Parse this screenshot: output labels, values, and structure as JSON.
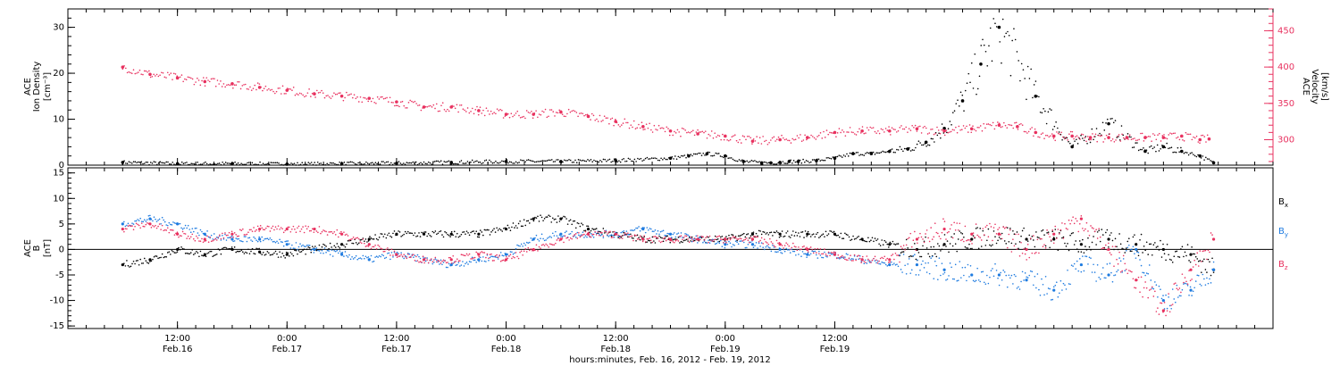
{
  "chart_data": [
    {
      "type": "scatter",
      "panel": "top",
      "ylabel_left": [
        "ACE",
        "Ion Density",
        "[cm⁻³]"
      ],
      "ylabel_right": [
        "ACE",
        "Velocity",
        "[km/s]"
      ],
      "left_axis": {
        "ylim": [
          0,
          34
        ],
        "ticks": [
          "0",
          "10",
          "20",
          "30"
        ],
        "tick_values": [
          0,
          10,
          20,
          30
        ]
      },
      "right_axis": {
        "ylim": [
          265,
          480
        ],
        "ticks": [
          "300",
          "350",
          "400",
          "450"
        ],
        "tick_values": [
          300,
          350,
          400,
          450
        ],
        "color": "#e8315f"
      },
      "series": [
        {
          "key": "density",
          "axis": "left",
          "color": "#000000",
          "x_hours": [
            0,
            6,
            12,
            18,
            24,
            30,
            36,
            42,
            48,
            54,
            60,
            62,
            64,
            66,
            68,
            70,
            71,
            72,
            73,
            74,
            76,
            78,
            80,
            82,
            84,
            86,
            88,
            90,
            92,
            94,
            96,
            100,
            104,
            108,
            112,
            114,
            116,
            118,
            119.5
          ],
          "values": [
            0.6,
            0.3,
            0.3,
            0.2,
            0.3,
            0.4,
            0.6,
            0.8,
            0.8,
            1.0,
            1.5,
            2.0,
            2.5,
            2.0,
            0.8,
            0.5,
            0.5,
            0.6,
            0.8,
            0.8,
            1.0,
            1.5,
            2.5,
            2.5,
            3.0,
            3.5,
            5,
            8,
            14,
            22,
            30,
            15,
            4,
            9,
            3,
            4,
            3,
            2,
            0.5
          ]
        },
        {
          "key": "velocity",
          "axis": "right",
          "color": "#e8315f",
          "x_hours": [
            0,
            3,
            6,
            9,
            12,
            15,
            18,
            21,
            24,
            27,
            30,
            33,
            36,
            39,
            42,
            45,
            48,
            51,
            54,
            57,
            60,
            63,
            66,
            69,
            72,
            75,
            78,
            81,
            84,
            87,
            90,
            93,
            96,
            98,
            100,
            102,
            104,
            106,
            108,
            110,
            112,
            114,
            116,
            118,
            119
          ],
          "values": [
            400,
            390,
            385,
            380,
            377,
            372,
            368,
            363,
            360,
            357,
            352,
            345,
            345,
            340,
            335,
            335,
            338,
            332,
            325,
            318,
            312,
            308,
            305,
            298,
            300,
            303,
            310,
            312,
            312,
            315,
            312,
            315,
            320,
            318,
            310,
            305,
            305,
            303,
            303,
            303,
            303,
            303,
            305,
            300,
            301
          ]
        }
      ]
    },
    {
      "type": "scatter",
      "panel": "bottom",
      "ylabel_left": [
        "ACE",
        "B",
        "[nT]"
      ],
      "ylim": [
        -15.5,
        16
      ],
      "ticks": [
        "-15",
        "-10",
        "-5",
        "0",
        "5",
        "10",
        "15"
      ],
      "tick_values": [
        -15,
        -10,
        -5,
        0,
        5,
        10,
        15
      ],
      "zero_line": true,
      "series": [
        {
          "key": "bx",
          "name": "B",
          "sub": "x",
          "color": "#000000",
          "x_hours": [
            0,
            3,
            6,
            9,
            12,
            15,
            18,
            21,
            24,
            27,
            30,
            33,
            36,
            39,
            42,
            45,
            48,
            51,
            54,
            57,
            60,
            63,
            66,
            69,
            72,
            75,
            78,
            81,
            84,
            87,
            90,
            93,
            96,
            99,
            102,
            105,
            108,
            111,
            114,
            117,
            119.5
          ],
          "values": [
            -3,
            -2,
            0,
            -1,
            0,
            -0.5,
            -1,
            0,
            1,
            2,
            3,
            3,
            3,
            3,
            4,
            6,
            6,
            4,
            3,
            2,
            2,
            2,
            2,
            3,
            3,
            3,
            3,
            2,
            1,
            0,
            1,
            2,
            3,
            2,
            2,
            1,
            2,
            1,
            0,
            -1,
            -4
          ]
        },
        {
          "key": "by",
          "name": "B",
          "sub": "y",
          "color": "#1e7be0",
          "x_hours": [
            0,
            3,
            6,
            9,
            12,
            15,
            18,
            21,
            24,
            27,
            30,
            33,
            36,
            39,
            42,
            45,
            48,
            51,
            54,
            57,
            60,
            63,
            66,
            69,
            72,
            75,
            78,
            81,
            84,
            87,
            90,
            93,
            96,
            99,
            102,
            105,
            108,
            111,
            114,
            117,
            119.5
          ],
          "values": [
            5,
            6,
            5,
            3,
            2,
            2,
            1,
            0,
            -1,
            -2,
            -1,
            -2,
            -3,
            -2,
            -1,
            2,
            3,
            3,
            3,
            4,
            3,
            2,
            1,
            1,
            0,
            -1,
            -1,
            -2,
            -3,
            -3,
            -4,
            -5,
            -5,
            -6,
            -8,
            -3,
            -5,
            0,
            -10,
            -8,
            -4
          ]
        },
        {
          "key": "bz",
          "name": "B",
          "sub": "z",
          "color": "#e8315f",
          "x_hours": [
            0,
            3,
            6,
            9,
            12,
            15,
            18,
            21,
            24,
            27,
            30,
            33,
            36,
            39,
            42,
            45,
            48,
            51,
            54,
            57,
            60,
            63,
            66,
            69,
            72,
            75,
            78,
            81,
            84,
            87,
            90,
            93,
            96,
            99,
            102,
            105,
            108,
            111,
            114,
            117,
            119.5
          ],
          "values": [
            4,
            5,
            3,
            2,
            3,
            4,
            4,
            4,
            3,
            1,
            -1,
            -2,
            -2,
            -1,
            -2,
            0,
            2,
            3,
            3,
            2,
            2,
            2,
            2,
            2,
            1,
            0,
            -1,
            -2,
            -2,
            2,
            4,
            3,
            3,
            0,
            3,
            6,
            0,
            -6,
            -12,
            -4,
            2
          ]
        }
      ]
    }
  ],
  "x_axis": {
    "xlim_hours": [
      -6,
      126
    ],
    "major_ticks": [
      {
        "hours": 6,
        "time": "12:00",
        "date": "Feb.16"
      },
      {
        "hours": 18,
        "time": "0:00",
        "date": "Feb.17"
      },
      {
        "hours": 30,
        "time": "12:00",
        "date": "Feb.17"
      },
      {
        "hours": 42,
        "time": "0:00",
        "date": "Feb.18"
      },
      {
        "hours": 54,
        "time": "12:00",
        "date": "Feb.18"
      },
      {
        "hours": 66,
        "time": "0:00",
        "date": "Feb.19"
      },
      {
        "hours": 78,
        "time": "12:00",
        "date": "Feb.19"
      }
    ],
    "xlabel": "hours:minutes, Feb. 16, 2012 - Feb. 19, 2012"
  }
}
